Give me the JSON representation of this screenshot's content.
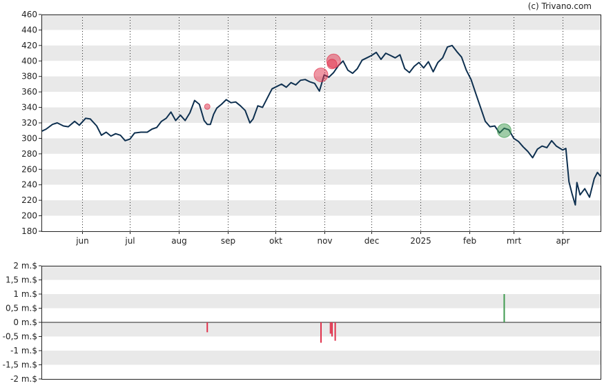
{
  "credit": "(c) Trivano.com",
  "chart_data": [
    {
      "type": "line",
      "name": "price-panel",
      "ylim": [
        180,
        460
      ],
      "y_ticks": [
        "460",
        "440",
        "420",
        "400",
        "380",
        "360",
        "340",
        "320",
        "300",
        "280",
        "260",
        "240",
        "220",
        "200",
        "180"
      ],
      "y_tick_values": [
        460,
        440,
        420,
        400,
        380,
        360,
        340,
        320,
        300,
        280,
        260,
        240,
        220,
        200,
        180
      ],
      "x_range": [
        "2024-05-06",
        "2025-04-25"
      ],
      "month_labels": [
        {
          "label": "jun",
          "date": "2024-06-01"
        },
        {
          "label": "jul",
          "date": "2024-07-01"
        },
        {
          "label": "aug",
          "date": "2024-08-01"
        },
        {
          "label": "sep",
          "date": "2024-09-01"
        },
        {
          "label": "okt",
          "date": "2024-10-01"
        },
        {
          "label": "nov",
          "date": "2024-11-01"
        },
        {
          "label": "dec",
          "date": "2024-12-01"
        },
        {
          "label": "2025",
          "date": "2025-01-01"
        },
        {
          "label": "feb",
          "date": "2025-02-01"
        },
        {
          "label": "mrt",
          "date": "2025-03-01"
        },
        {
          "label": "apr",
          "date": "2025-04-01"
        }
      ],
      "grid": "alternating horizontal bands, dotted vertical month lines",
      "series": [
        {
          "color": "#0d2f4f",
          "points": [
            [
              "2024-05-06",
              309
            ],
            [
              "2024-05-09",
              312
            ],
            [
              "2024-05-13",
              318
            ],
            [
              "2024-05-16",
              320
            ],
            [
              "2024-05-20",
              316
            ],
            [
              "2024-05-23",
              315
            ],
            [
              "2024-05-27",
              322
            ],
            [
              "2024-05-30",
              317
            ],
            [
              "2024-06-03",
              326
            ],
            [
              "2024-06-06",
              325
            ],
            [
              "2024-06-10",
              316
            ],
            [
              "2024-06-13",
              304
            ],
            [
              "2024-06-16",
              308
            ],
            [
              "2024-06-19",
              303
            ],
            [
              "2024-06-22",
              306
            ],
            [
              "2024-06-25",
              304
            ],
            [
              "2024-06-28",
              297
            ],
            [
              "2024-07-01",
              299
            ],
            [
              "2024-07-04",
              307
            ],
            [
              "2024-07-08",
              308
            ],
            [
              "2024-07-12",
              308
            ],
            [
              "2024-07-15",
              312
            ],
            [
              "2024-07-18",
              314
            ],
            [
              "2024-07-21",
              322
            ],
            [
              "2024-07-24",
              326
            ],
            [
              "2024-07-27",
              334
            ],
            [
              "2024-07-30",
              323
            ],
            [
              "2024-08-02",
              330
            ],
            [
              "2024-08-05",
              323
            ],
            [
              "2024-08-08",
              333
            ],
            [
              "2024-08-11",
              349
            ],
            [
              "2024-08-14",
              344
            ],
            [
              "2024-08-17",
              323
            ],
            [
              "2024-08-19",
              318
            ],
            [
              "2024-08-21",
              318
            ],
            [
              "2024-08-23",
              331
            ],
            [
              "2024-08-25",
              339
            ],
            [
              "2024-08-28",
              344
            ],
            [
              "2024-08-31",
              350
            ],
            [
              "2024-09-03",
              346
            ],
            [
              "2024-09-06",
              347
            ],
            [
              "2024-09-09",
              342
            ],
            [
              "2024-09-12",
              336
            ],
            [
              "2024-09-15",
              320
            ],
            [
              "2024-09-17",
              325
            ],
            [
              "2024-09-20",
              342
            ],
            [
              "2024-09-23",
              340
            ],
            [
              "2024-09-26",
              352
            ],
            [
              "2024-09-29",
              364
            ],
            [
              "2024-10-02",
              367
            ],
            [
              "2024-10-05",
              370
            ],
            [
              "2024-10-08",
              366
            ],
            [
              "2024-10-11",
              372
            ],
            [
              "2024-10-14",
              369
            ],
            [
              "2024-10-17",
              375
            ],
            [
              "2024-10-20",
              376
            ],
            [
              "2024-10-23",
              373
            ],
            [
              "2024-10-26",
              371
            ],
            [
              "2024-10-29",
              361
            ],
            [
              "2024-11-01",
              382
            ],
            [
              "2024-11-04",
              379
            ],
            [
              "2024-11-07",
              385
            ],
            [
              "2024-11-10",
              394
            ],
            [
              "2024-11-13",
              400
            ],
            [
              "2024-11-16",
              388
            ],
            [
              "2024-11-19",
              384
            ],
            [
              "2024-11-22",
              390
            ],
            [
              "2024-11-25",
              401
            ],
            [
              "2024-11-28",
              404
            ],
            [
              "2024-12-01",
              407
            ],
            [
              "2024-12-04",
              411
            ],
            [
              "2024-12-07",
              402
            ],
            [
              "2024-12-10",
              410
            ],
            [
              "2024-12-13",
              407
            ],
            [
              "2024-12-16",
              404
            ],
            [
              "2024-12-19",
              408
            ],
            [
              "2024-12-22",
              390
            ],
            [
              "2024-12-25",
              385
            ],
            [
              "2024-12-28",
              393
            ],
            [
              "2024-12-31",
              398
            ],
            [
              "2025-01-03",
              391
            ],
            [
              "2025-01-06",
              399
            ],
            [
              "2025-01-09",
              386
            ],
            [
              "2025-01-12",
              398
            ],
            [
              "2025-01-15",
              404
            ],
            [
              "2025-01-18",
              418
            ],
            [
              "2025-01-21",
              420
            ],
            [
              "2025-01-24",
              412
            ],
            [
              "2025-01-27",
              405
            ],
            [
              "2025-01-30",
              388
            ],
            [
              "2025-02-02",
              376
            ],
            [
              "2025-02-05",
              358
            ],
            [
              "2025-02-08",
              340
            ],
            [
              "2025-02-11",
              322
            ],
            [
              "2025-02-14",
              315
            ],
            [
              "2025-02-17",
              316
            ],
            [
              "2025-02-20",
              307
            ],
            [
              "2025-02-23",
              313
            ],
            [
              "2025-02-26",
              311
            ],
            [
              "2025-03-01",
              300
            ],
            [
              "2025-03-04",
              296
            ],
            [
              "2025-03-07",
              289
            ],
            [
              "2025-03-10",
              283
            ],
            [
              "2025-03-13",
              275
            ],
            [
              "2025-03-16",
              286
            ],
            [
              "2025-03-19",
              290
            ],
            [
              "2025-03-22",
              288
            ],
            [
              "2025-03-25",
              297
            ],
            [
              "2025-03-28",
              290
            ],
            [
              "2025-04-01",
              285
            ],
            [
              "2025-04-03",
              287
            ],
            [
              "2025-04-05",
              244
            ],
            [
              "2025-04-07",
              228
            ],
            [
              "2025-04-09",
              214
            ],
            [
              "2025-04-10",
              243
            ],
            [
              "2025-04-12",
              227
            ],
            [
              "2025-04-15",
              235
            ],
            [
              "2025-04-18",
              224
            ],
            [
              "2025-04-21",
              248
            ],
            [
              "2025-04-23",
              256
            ],
            [
              "2025-04-25",
              251
            ]
          ]
        }
      ],
      "markers": [
        {
          "date": "2024-08-19",
          "value": 341,
          "color": "#e0304a",
          "size": "small"
        },
        {
          "date": "2024-10-30",
          "value": 382,
          "color": "#e0304a",
          "size": "large"
        },
        {
          "date": "2024-11-06",
          "value": 396,
          "color": "#e0304a",
          "size": "medium"
        },
        {
          "date": "2024-11-07",
          "value": 400,
          "color": "#e0304a",
          "size": "large"
        },
        {
          "date": "2025-02-23",
          "value": 310,
          "color": "#3f9a4f",
          "size": "large"
        }
      ]
    },
    {
      "type": "bar",
      "name": "insider-panel",
      "ylim": [
        -2,
        2
      ],
      "y_ticks": [
        "2 m.$",
        "1,5 m.$",
        "1 m.$",
        "0,5 m.$",
        "0 m.$",
        "-0,5 m.$",
        "-1 m.$",
        "-1,5 m.$",
        "-2 m.$"
      ],
      "y_tick_values": [
        2,
        1.5,
        1,
        0.5,
        0,
        -0.5,
        -1,
        -1.5,
        -2
      ],
      "bars": [
        {
          "date": "2024-08-19",
          "value": -0.35,
          "color": "#e0304a"
        },
        {
          "date": "2024-10-30",
          "value": -0.72,
          "color": "#e0304a"
        },
        {
          "date": "2024-11-05",
          "value": -0.4,
          "color": "#e0304a"
        },
        {
          "date": "2024-11-06",
          "value": -0.5,
          "color": "#e0304a"
        },
        {
          "date": "2024-11-08",
          "value": -0.65,
          "color": "#e0304a"
        },
        {
          "date": "2025-02-23",
          "value": 1.0,
          "color": "#3f9a4f"
        }
      ]
    }
  ]
}
